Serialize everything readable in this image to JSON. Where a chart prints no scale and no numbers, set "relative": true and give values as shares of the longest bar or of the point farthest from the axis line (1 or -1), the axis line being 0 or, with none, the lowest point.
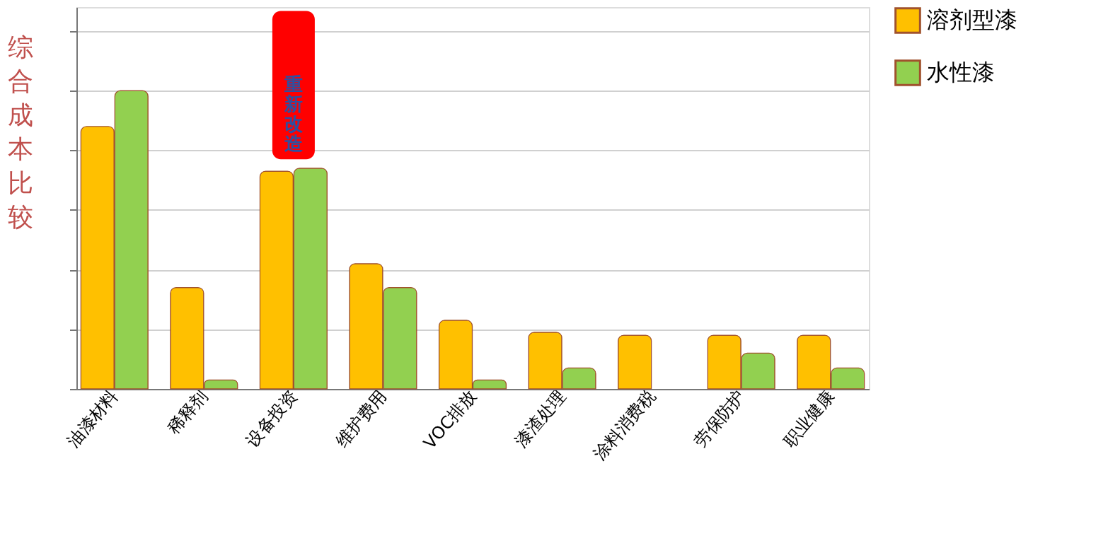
{
  "chart_data": {
    "type": "bar",
    "relative": true,
    "ylabel": "综合成本比较",
    "categories": [
      "油漆材料",
      "稀释剂",
      "设备投资",
      "维护费用",
      "VOC排放",
      "漆渣处理",
      "涂料消费税",
      "劳保防护",
      "职业健康"
    ],
    "series": [
      {
        "name": "溶剂型漆",
        "color": "#ffc000",
        "values": [
          0.88,
          0.34,
          0.73,
          0.42,
          0.23,
          0.19,
          0.18,
          0.18,
          0.18
        ]
      },
      {
        "name": "水性漆",
        "color": "#92d050",
        "values": [
          1,
          0.03,
          0.74,
          0.34,
          0.03,
          0.07,
          null,
          0.12,
          0.07
        ]
      }
    ],
    "annotations": [
      "重新改造"
    ],
    "grid": "y",
    "legend": "right"
  }
}
